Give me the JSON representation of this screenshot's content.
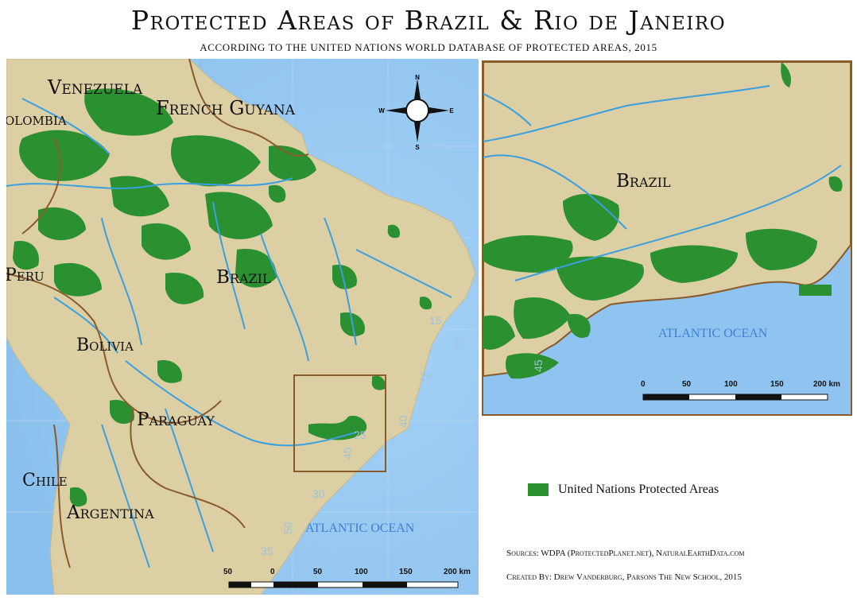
{
  "title": "Protected Areas of Brazil & Rio de Janeiro",
  "subtitle": "ACCORDING TO THE UNITED NATIONS WORLD DATABASE OF PROTECTED AREAS, 2015",
  "main_map": {
    "country_labels": {
      "venezuela": "Venezuela",
      "colombia": "olombia",
      "french_guyana": "French Guyana",
      "peru": "Peru",
      "brazil": "Brazil",
      "bolivia": "Bolivia",
      "paraguay": "Paraguay",
      "chile": "Chile",
      "argentina": "Argentina"
    },
    "ocean_label": "ATLANTIC OCEAN",
    "grid_labels": [
      "15",
      "35",
      "20",
      "40",
      "25",
      "45",
      "30",
      "50",
      "35"
    ],
    "compass": {
      "n": "N",
      "s": "S",
      "e": "E",
      "w": "W"
    },
    "scale": {
      "labels": [
        "50",
        "0",
        "50",
        "100",
        "150",
        "200 km"
      ]
    }
  },
  "inset_map": {
    "country_label": "Brazil",
    "ocean_label": "ATLANTIC OCEAN",
    "grid_label": "45",
    "scale": {
      "labels": [
        "0",
        "50",
        "100",
        "150",
        "200 km"
      ]
    }
  },
  "legend": {
    "label": "United Nations Protected Areas",
    "color": "#2b9030"
  },
  "sources": "Sources: WDPA (ProtectedPlanet.net), NaturalEarthData.com",
  "credit": "Created By: Drew Vanderburg, Parsons The New School, 2015",
  "colors": {
    "ocean": "#8fc3f0",
    "land": "#dccfa3",
    "protected": "#2b9030",
    "river": "#3aa0e0",
    "border": "#8a5a2a"
  }
}
